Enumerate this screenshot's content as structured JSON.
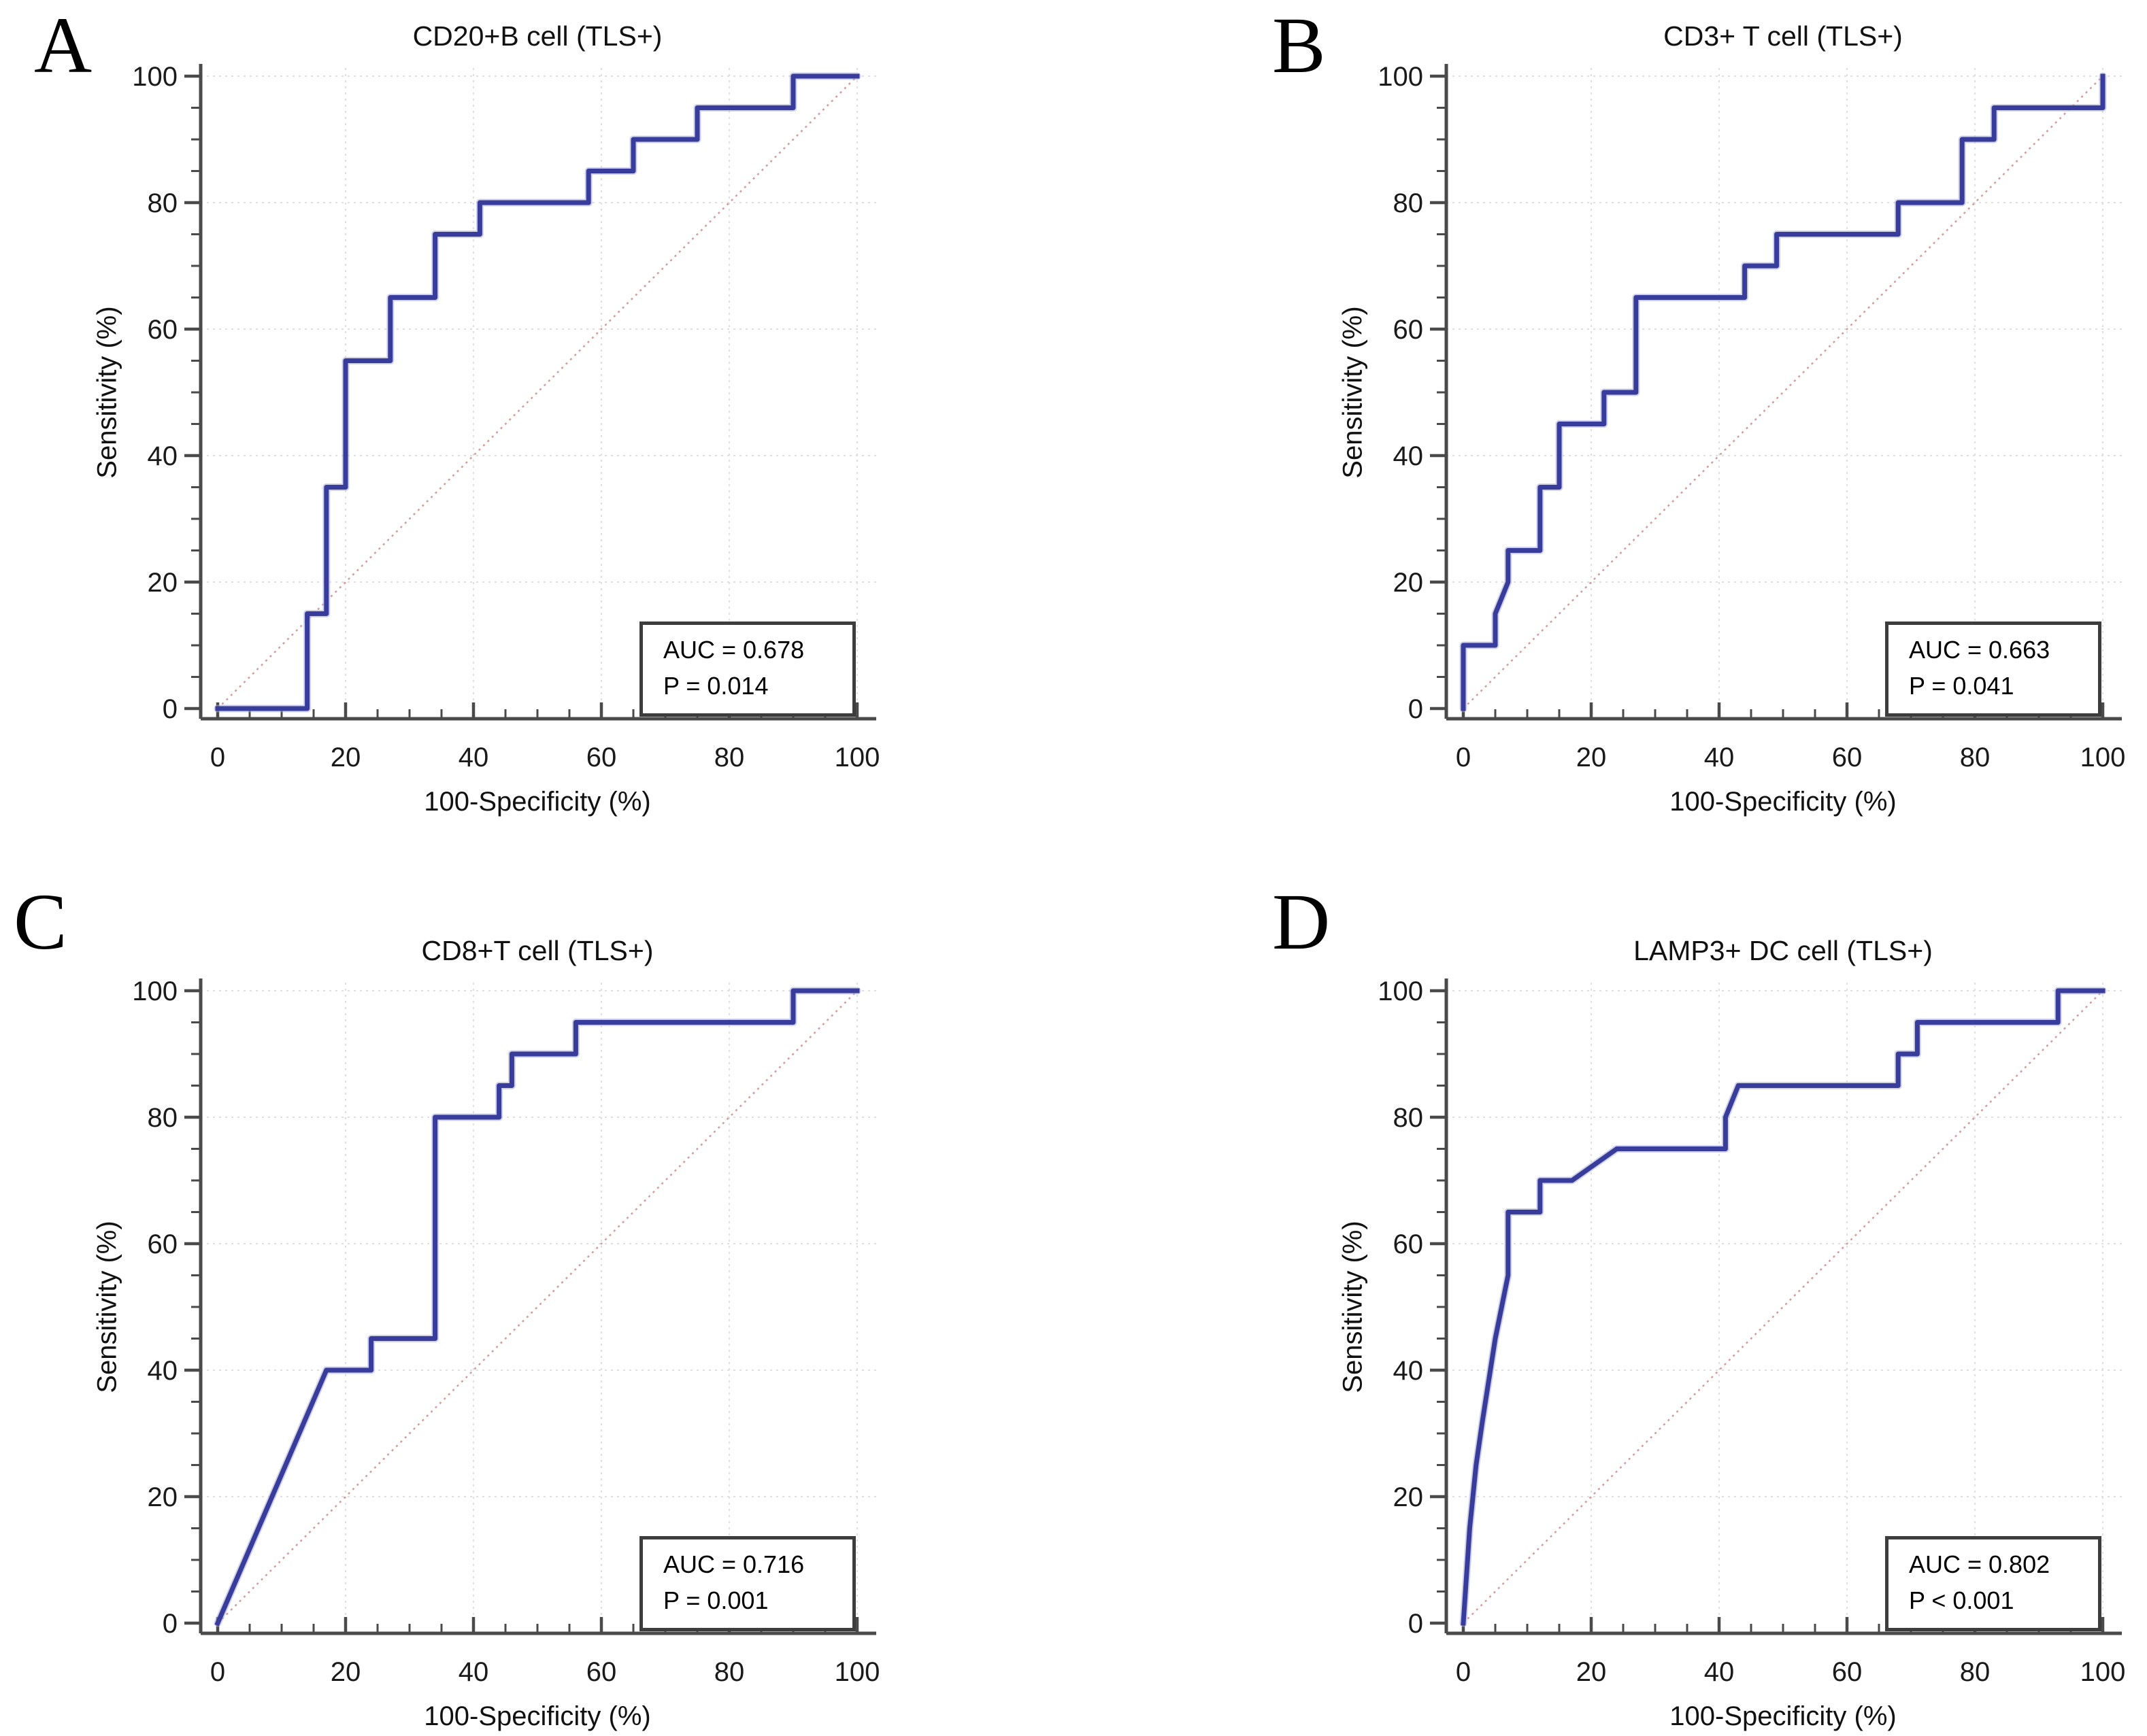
{
  "figure": {
    "background": "#ffffff",
    "colors": {
      "curve": "#383d9b",
      "curve_halo": "#a9abd6",
      "diagonal": "#d09c9c",
      "grid": "#e3dede",
      "axis": "#4a4a4a",
      "tick_label": "#1a1a1a",
      "auc_border": "#3d3d3d",
      "text": "#000000"
    }
  },
  "panels": [
    {
      "letter": "A",
      "title": "CD20+B cell (TLS+)",
      "auc_label": "AUC = 0.678",
      "p_label": "P = 0.014"
    },
    {
      "letter": "B",
      "title": "CD3+ T cell (TLS+)",
      "auc_label": "AUC = 0.663",
      "p_label": "P = 0.041"
    },
    {
      "letter": "C",
      "title": "CD8+T cell (TLS+)",
      "auc_label": "AUC = 0.716",
      "p_label": "P = 0.001"
    },
    {
      "letter": "D",
      "title": "LAMP3+ DC cell (TLS+)",
      "auc_label": "AUC = 0.802",
      "p_label": "P < 0.001"
    }
  ],
  "chart_data": [
    {
      "panel": "A",
      "type": "line",
      "title": "CD20+B cell (TLS+)",
      "xlabel": "100-Specificity (%)",
      "ylabel": "Sensitivity (%)",
      "xlim": [
        0,
        100
      ],
      "ylim": [
        0,
        100
      ],
      "xticks": [
        0,
        20,
        40,
        60,
        80,
        100
      ],
      "yticks": [
        0,
        20,
        40,
        60,
        80,
        100
      ],
      "minor_tick_step": 5,
      "grid": true,
      "legend": "none",
      "auc": 0.678,
      "p": "0.014",
      "series": [
        {
          "name": "ROC curve",
          "points": [
            [
              0,
              0
            ],
            [
              14,
              0
            ],
            [
              14,
              15
            ],
            [
              17,
              15
            ],
            [
              17,
              35
            ],
            [
              20,
              35
            ],
            [
              20,
              55
            ],
            [
              27,
              55
            ],
            [
              27,
              65
            ],
            [
              34,
              65
            ],
            [
              34,
              75
            ],
            [
              41,
              75
            ],
            [
              41,
              80
            ],
            [
              58,
              80
            ],
            [
              58,
              85
            ],
            [
              65,
              85
            ],
            [
              65,
              90
            ],
            [
              75,
              90
            ],
            [
              75,
              95
            ],
            [
              90,
              95
            ],
            [
              90,
              100
            ],
            [
              100,
              100
            ]
          ]
        },
        {
          "name": "reference diagonal",
          "points": [
            [
              0,
              0
            ],
            [
              100,
              100
            ]
          ]
        }
      ]
    },
    {
      "panel": "B",
      "type": "line",
      "title": "CD3+ T cell (TLS+)",
      "xlabel": "100-Specificity (%)",
      "ylabel": "Sensitivity (%)",
      "xlim": [
        0,
        100
      ],
      "ylim": [
        0,
        100
      ],
      "xticks": [
        0,
        20,
        40,
        60,
        80,
        100
      ],
      "yticks": [
        0,
        20,
        40,
        60,
        80,
        100
      ],
      "minor_tick_step": 5,
      "grid": true,
      "legend": "none",
      "auc": 0.663,
      "p": "0.041",
      "series": [
        {
          "name": "ROC curve",
          "points": [
            [
              0,
              0
            ],
            [
              0,
              10
            ],
            [
              5,
              10
            ],
            [
              5,
              15
            ],
            [
              7,
              20
            ],
            [
              7,
              25
            ],
            [
              12,
              25
            ],
            [
              12,
              35
            ],
            [
              15,
              35
            ],
            [
              15,
              45
            ],
            [
              22,
              45
            ],
            [
              22,
              50
            ],
            [
              27,
              50
            ],
            [
              27,
              65
            ],
            [
              44,
              65
            ],
            [
              44,
              70
            ],
            [
              49,
              70
            ],
            [
              49,
              75
            ],
            [
              68,
              75
            ],
            [
              68,
              80
            ],
            [
              78,
              80
            ],
            [
              78,
              90
            ],
            [
              83,
              90
            ],
            [
              83,
              95
            ],
            [
              100,
              95
            ],
            [
              100,
              100
            ]
          ]
        },
        {
          "name": "reference diagonal",
          "points": [
            [
              0,
              0
            ],
            [
              100,
              100
            ]
          ]
        }
      ]
    },
    {
      "panel": "C",
      "type": "line",
      "title": "CD8+T cell (TLS+)",
      "xlabel": "100-Specificity (%)",
      "ylabel": "Sensitivity (%)",
      "xlim": [
        0,
        100
      ],
      "ylim": [
        0,
        100
      ],
      "xticks": [
        0,
        20,
        40,
        60,
        80,
        100
      ],
      "yticks": [
        0,
        20,
        40,
        60,
        80,
        100
      ],
      "minor_tick_step": 5,
      "grid": true,
      "legend": "none",
      "auc": 0.716,
      "p": "0.001",
      "series": [
        {
          "name": "ROC curve",
          "points": [
            [
              0,
              0
            ],
            [
              17,
              40
            ],
            [
              24,
              40
            ],
            [
              24,
              45
            ],
            [
              34,
              45
            ],
            [
              34,
              80
            ],
            [
              44,
              80
            ],
            [
              44,
              85
            ],
            [
              46,
              85
            ],
            [
              46,
              90
            ],
            [
              56,
              90
            ],
            [
              56,
              95
            ],
            [
              90,
              95
            ],
            [
              90,
              100
            ],
            [
              100,
              100
            ]
          ]
        },
        {
          "name": "reference diagonal",
          "points": [
            [
              0,
              0
            ],
            [
              100,
              100
            ]
          ]
        }
      ]
    },
    {
      "panel": "D",
      "type": "line",
      "title": "LAMP3+ DC cell (TLS+)",
      "xlabel": "100-Specificity (%)",
      "ylabel": "Sensitivity (%)",
      "xlim": [
        0,
        100
      ],
      "ylim": [
        0,
        100
      ],
      "xticks": [
        0,
        20,
        40,
        60,
        80,
        100
      ],
      "yticks": [
        0,
        20,
        40,
        60,
        80,
        100
      ],
      "minor_tick_step": 5,
      "grid": true,
      "legend": "none",
      "auc": 0.802,
      "p": "< 0.001",
      "series": [
        {
          "name": "ROC curve",
          "points": [
            [
              0,
              0
            ],
            [
              1,
              15
            ],
            [
              2,
              25
            ],
            [
              3,
              32
            ],
            [
              5,
              45
            ],
            [
              6,
              50
            ],
            [
              7,
              55
            ],
            [
              7,
              65
            ],
            [
              12,
              65
            ],
            [
              12,
              70
            ],
            [
              17,
              70
            ],
            [
              24,
              75
            ],
            [
              41,
              75
            ],
            [
              41,
              80
            ],
            [
              43,
              85
            ],
            [
              68,
              85
            ],
            [
              68,
              90
            ],
            [
              71,
              90
            ],
            [
              71,
              95
            ],
            [
              93,
              95
            ],
            [
              93,
              100
            ],
            [
              100,
              100
            ]
          ]
        },
        {
          "name": "reference diagonal",
          "points": [
            [
              0,
              0
            ],
            [
              100,
              100
            ]
          ]
        }
      ]
    }
  ]
}
